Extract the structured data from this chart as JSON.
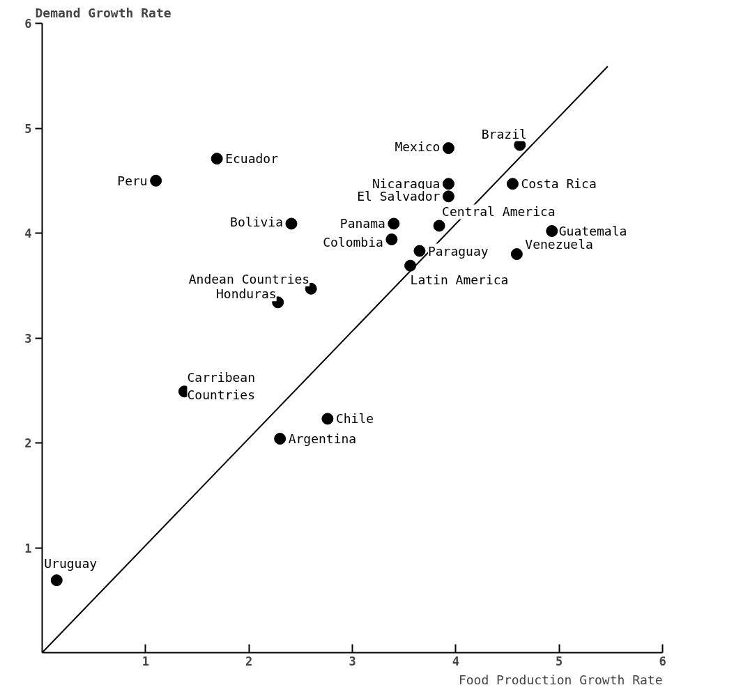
{
  "chart_data": {
    "type": "scatter",
    "xlabel": "Food Production Growth Rate",
    "ylabel": "Demand Growth Rate",
    "xlim": [
      0,
      6
    ],
    "ylim": [
      0,
      6
    ],
    "xticks": [
      1,
      2,
      3,
      4,
      5,
      6
    ],
    "yticks": [
      1,
      2,
      3,
      4,
      5,
      6
    ],
    "grid": false,
    "marker": "circle",
    "series": [
      {
        "color": "#000000",
        "x": [
          1.1,
          1.69,
          2.41,
          2.6,
          2.28,
          1.375,
          2.76,
          2.3,
          0.14,
          3.93,
          4.62,
          3.93,
          3.93,
          4.55,
          3.4,
          3.38,
          3.84,
          4.93,
          4.59,
          3.65,
          3.56
        ],
        "values": [
          4.5,
          4.71,
          4.09,
          3.47,
          3.34,
          2.49,
          2.23,
          2.04,
          0.69,
          4.81,
          4.84,
          4.47,
          4.35,
          4.47,
          4.09,
          3.94,
          4.07,
          4.02,
          3.8,
          3.83,
          3.69
        ]
      },
      {
        "type": "line",
        "marker": "none",
        "color": "#000000",
        "x": [
          0,
          5.47
        ],
        "values": [
          0,
          5.59
        ]
      }
    ],
    "annotations": [
      {
        "text": "Peru",
        "x": 1.1,
        "y": 4.5
      },
      {
        "text": "Ecuador",
        "x": 1.69,
        "y": 4.71
      },
      {
        "text": "Bolivia",
        "x": 2.41,
        "y": 4.09
      },
      {
        "text": "Andean Countries",
        "x": 2.6,
        "y": 3.47
      },
      {
        "text": "Honduras",
        "x": 2.28,
        "y": 3.34
      },
      {
        "text": "Carribean Countries",
        "x": 1.375,
        "y": 2.49
      },
      {
        "text": "Chile",
        "x": 2.76,
        "y": 2.23
      },
      {
        "text": "Argentina",
        "x": 2.3,
        "y": 2.04
      },
      {
        "text": "Uruguay",
        "x": 0.14,
        "y": 0.69
      },
      {
        "text": "Mexico",
        "x": 3.93,
        "y": 4.81
      },
      {
        "text": "Brazil",
        "x": 4.62,
        "y": 4.84
      },
      {
        "text": "Nicaragua",
        "x": 3.93,
        "y": 4.47
      },
      {
        "text": "El Salvador",
        "x": 3.93,
        "y": 4.35
      },
      {
        "text": "Costa Rica",
        "x": 4.55,
        "y": 4.47
      },
      {
        "text": "Panama",
        "x": 3.4,
        "y": 4.09
      },
      {
        "text": "Colombia",
        "x": 3.38,
        "y": 3.94
      },
      {
        "text": "Central America",
        "x": 3.84,
        "y": 4.07
      },
      {
        "text": "Guatemala",
        "x": 4.93,
        "y": 4.02
      },
      {
        "text": "Venezuela",
        "x": 4.59,
        "y": 3.8
      },
      {
        "text": "Paraguay",
        "x": 3.65,
        "y": 3.83
      },
      {
        "text": "Latin America",
        "x": 3.56,
        "y": 3.69
      }
    ]
  }
}
